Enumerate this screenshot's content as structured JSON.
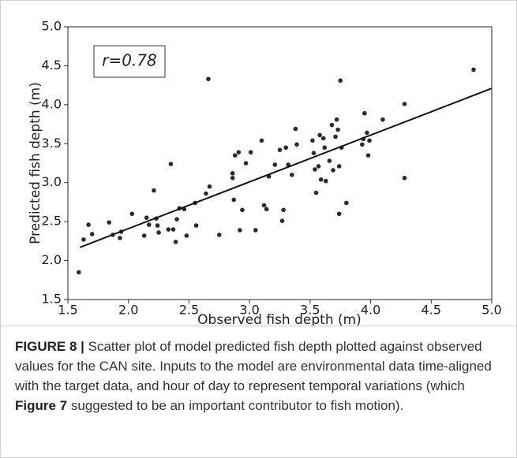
{
  "chart_data": {
    "type": "scatter",
    "annotation": "r=0.78",
    "x_label": "Observed fish depth (m)",
    "y_label": "Predicted fish depth (m)",
    "color": "#2b2b2b",
    "x": [
      1.59,
      1.63,
      1.67,
      1.7,
      1.84,
      1.87,
      1.93,
      1.94,
      2.03,
      2.13,
      2.15,
      2.17,
      2.21,
      2.23,
      2.24,
      2.25,
      2.33,
      2.35,
      2.37,
      2.39,
      2.4,
      2.42,
      2.46,
      2.48,
      2.55,
      2.56,
      2.64,
      2.66,
      2.67,
      2.75,
      2.86,
      2.86,
      2.87,
      2.88,
      2.91,
      2.92,
      2.94,
      2.97,
      3.01,
      3.05,
      3.1,
      3.12,
      3.14,
      3.16,
      3.21,
      3.25,
      3.27,
      3.28,
      3.3,
      3.32,
      3.35,
      3.38,
      3.39,
      3.52,
      3.53,
      3.54,
      3.55,
      3.57,
      3.58,
      3.59,
      3.61,
      3.62,
      3.63,
      3.66,
      3.68,
      3.69,
      3.71,
      3.72,
      3.73,
      3.74,
      3.74,
      3.75,
      3.76,
      3.8,
      3.93,
      3.94,
      3.95,
      3.97,
      3.98,
      3.99,
      4.1,
      4.28,
      4.28,
      4.85
    ],
    "values": [
      1.85,
      2.27,
      2.46,
      2.34,
      2.49,
      2.33,
      2.29,
      2.37,
      2.6,
      2.32,
      2.55,
      2.46,
      2.9,
      2.54,
      2.45,
      2.36,
      2.4,
      3.24,
      2.4,
      2.24,
      2.53,
      2.67,
      2.66,
      2.32,
      2.74,
      2.45,
      2.86,
      4.33,
      2.95,
      2.33,
      3.12,
      3.06,
      2.78,
      3.35,
      3.39,
      2.39,
      2.65,
      3.25,
      3.39,
      2.39,
      3.54,
      2.71,
      2.66,
      3.08,
      3.23,
      3.42,
      2.51,
      2.65,
      3.45,
      3.23,
      3.1,
      3.69,
      3.49,
      3.54,
      3.38,
      3.17,
      2.87,
      3.21,
      3.61,
      3.04,
      3.57,
      3.45,
      3.02,
      3.28,
      3.74,
      3.16,
      3.59,
      3.81,
      3.68,
      2.6,
      3.21,
      4.31,
      3.45,
      2.74,
      3.49,
      3.56,
      3.89,
      3.64,
      3.35,
      3.54,
      3.81,
      4.01,
      3.06,
      4.45
    ],
    "fit_line": {
      "x": [
        1.6,
        5.0
      ],
      "y": [
        2.17,
        4.21
      ]
    },
    "xlim": [
      1.5,
      5.0
    ],
    "ylim": [
      1.5,
      5.0
    ],
    "xticks": [
      {
        "value": 1.5,
        "label": "1.5"
      },
      {
        "value": 2,
        "label": "2.0"
      },
      {
        "value": 2.5,
        "label": "2.5"
      },
      {
        "value": 3,
        "label": "3.0"
      },
      {
        "value": 3.5,
        "label": "3.5"
      },
      {
        "value": 4,
        "label": "4.0"
      },
      {
        "value": 4.5,
        "label": "4.5"
      },
      {
        "value": 5,
        "label": "5.0"
      }
    ],
    "yticks": [
      {
        "value": 1.5,
        "label": "1.5"
      },
      {
        "value": 2,
        "label": "2.0"
      },
      {
        "value": 2.5,
        "label": "2.5"
      },
      {
        "value": 3,
        "label": "3.0"
      },
      {
        "value": 3.5,
        "label": "3.5"
      },
      {
        "value": 4,
        "label": "4.0"
      },
      {
        "value": 4.5,
        "label": "4.5"
      },
      {
        "value": 5,
        "label": "5.0"
      }
    ]
  },
  "caption": {
    "label": "FIGURE 8 |",
    "text_before": "Scatter plot of model predicted fish depth plotted against observed values for the CAN site. Inputs to the model are environmental data time-aligned with the target data, and hour of day to represent temporal variations (which",
    "ref": "Figure 7",
    "text_after": "suggested to be an important contributor to fish motion)."
  }
}
